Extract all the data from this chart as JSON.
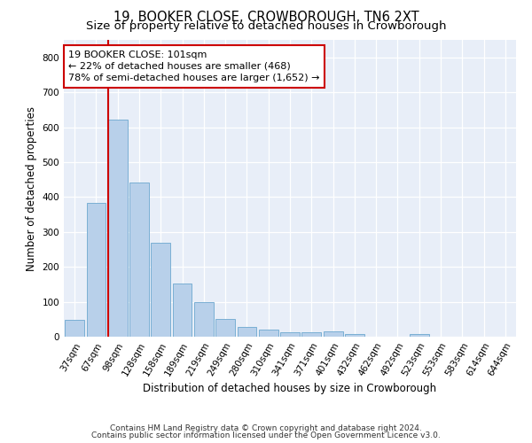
{
  "title": "19, BOOKER CLOSE, CROWBOROUGH, TN6 2XT",
  "subtitle": "Size of property relative to detached houses in Crowborough",
  "xlabel": "Distribution of detached houses by size in Crowborough",
  "ylabel": "Number of detached properties",
  "categories": [
    "37sqm",
    "67sqm",
    "98sqm",
    "128sqm",
    "158sqm",
    "189sqm",
    "219sqm",
    "249sqm",
    "280sqm",
    "310sqm",
    "341sqm",
    "371sqm",
    "401sqm",
    "432sqm",
    "462sqm",
    "492sqm",
    "523sqm",
    "553sqm",
    "583sqm",
    "614sqm",
    "644sqm"
  ],
  "values": [
    48,
    383,
    622,
    441,
    268,
    152,
    99,
    52,
    28,
    20,
    12,
    12,
    15,
    7,
    0,
    0,
    7,
    0,
    0,
    0,
    0
  ],
  "bar_color": "#b8d0ea",
  "bar_edge_color": "#7aafd4",
  "vline_color": "#cc0000",
  "vline_index": 2,
  "annotation_text": "19 BOOKER CLOSE: 101sqm\n← 22% of detached houses are smaller (468)\n78% of semi-detached houses are larger (1,652) →",
  "annotation_box_color": "#cc0000",
  "background_color": "#e8eef8",
  "ylim": [
    0,
    850
  ],
  "yticks": [
    0,
    100,
    200,
    300,
    400,
    500,
    600,
    700,
    800
  ],
  "footer_line1": "Contains HM Land Registry data © Crown copyright and database right 2024.",
  "footer_line2": "Contains public sector information licensed under the Open Government Licence v3.0.",
  "title_fontsize": 10.5,
  "xlabel_fontsize": 8.5,
  "ylabel_fontsize": 8.5,
  "tick_fontsize": 7.5,
  "annot_fontsize": 8,
  "footer_fontsize": 6.5
}
